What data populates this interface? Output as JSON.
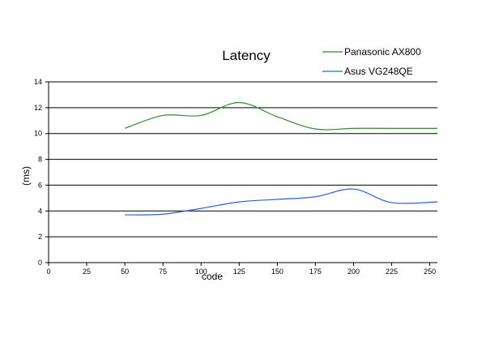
{
  "chart_data": {
    "type": "line",
    "title": "Latency",
    "xlabel": "code",
    "ylabel": "(ms)",
    "xlim": [
      0,
      255
    ],
    "ylim": [
      0,
      14
    ],
    "xticks": [
      0,
      25,
      50,
      75,
      100,
      125,
      150,
      175,
      200,
      225,
      250
    ],
    "yticks": [
      0,
      2,
      4,
      6,
      8,
      10,
      12,
      14
    ],
    "grid": "horizontal",
    "legend": "top-right",
    "series": [
      {
        "name": "Panasonic AX800",
        "color": "#2e8b2e",
        "x": [
          50,
          75,
          100,
          125,
          150,
          175,
          200,
          225,
          255
        ],
        "y": [
          10.4,
          11.4,
          11.4,
          12.4,
          11.3,
          10.35,
          10.4,
          10.4,
          10.4
        ]
      },
      {
        "name": "Asus VG248QE",
        "color": "#2a5fd6",
        "x": [
          50,
          75,
          100,
          125,
          150,
          175,
          200,
          225,
          255
        ],
        "y": [
          3.7,
          3.75,
          4.2,
          4.7,
          4.9,
          5.1,
          5.7,
          4.65,
          4.7
        ]
      }
    ]
  }
}
